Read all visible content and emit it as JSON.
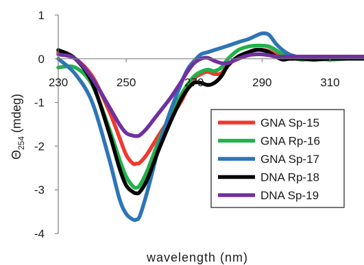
{
  "chart_data": {
    "type": "line",
    "title": "",
    "xlabel": "wavelength (nm)",
    "ylabel": {
      "main": "Θ",
      "sub": "254",
      "tail": " (mdeg)"
    },
    "xlim": [
      230,
      320
    ],
    "ylim": [
      -4,
      1
    ],
    "x_ticks": [
      230,
      250,
      270,
      290,
      310
    ],
    "y_ticks": [
      1,
      0,
      -1,
      -2,
      -3,
      -4
    ],
    "grid": false,
    "legend_position": "lower-right",
    "series": [
      {
        "name": "GNA Sp-15",
        "color": "#ee3a2e",
        "x": [
          230,
          235,
          240,
          245,
          248,
          250,
          252,
          253,
          254,
          256,
          258,
          260,
          263,
          266,
          268,
          270,
          272,
          274,
          276,
          278,
          280,
          283,
          286,
          288,
          290,
          292,
          294,
          296,
          298,
          300,
          302,
          305,
          310,
          315,
          320
        ],
        "y": [
          0.15,
          0.0,
          -0.4,
          -1.2,
          -1.8,
          -2.2,
          -2.4,
          -2.4,
          -2.38,
          -2.2,
          -1.95,
          -1.7,
          -1.35,
          -1.0,
          -0.7,
          -0.45,
          -0.35,
          -0.3,
          -0.35,
          -0.33,
          -0.15,
          0.05,
          0.15,
          0.2,
          0.2,
          0.18,
          0.1,
          0.05,
          0.0,
          0.0,
          -0.02,
          0.0,
          0.0,
          0.02,
          0.03
        ]
      },
      {
        "name": "GNA Rp-16",
        "color": "#22b14c",
        "x": [
          230,
          235,
          240,
          245,
          248,
          250,
          252,
          253,
          254,
          256,
          258,
          260,
          263,
          266,
          268,
          270,
          272,
          274,
          276,
          278,
          280,
          283,
          286,
          288,
          290,
          292,
          294,
          296,
          298,
          300,
          302,
          305,
          310,
          315,
          320
        ],
        "y": [
          -0.2,
          -0.2,
          -0.6,
          -1.6,
          -2.3,
          -2.7,
          -2.92,
          -2.95,
          -2.9,
          -2.6,
          -2.2,
          -1.8,
          -1.3,
          -0.85,
          -0.6,
          -0.4,
          -0.3,
          -0.25,
          -0.28,
          -0.2,
          0.0,
          0.2,
          0.28,
          0.3,
          0.3,
          0.28,
          0.2,
          0.1,
          0.05,
          0.0,
          -0.02,
          0.0,
          -0.02,
          0.0,
          0.0
        ]
      },
      {
        "name": "GNA Sp-17",
        "color": "#2e75b6",
        "x": [
          230,
          235,
          240,
          245,
          248,
          250,
          252,
          253,
          254,
          256,
          258,
          260,
          263,
          266,
          268,
          270,
          272,
          274,
          276,
          278,
          280,
          283,
          286,
          288,
          290,
          292,
          294,
          296,
          298,
          300,
          302,
          305,
          310,
          315,
          320
        ],
        "y": [
          0.0,
          -0.35,
          -1.0,
          -2.3,
          -3.2,
          -3.55,
          -3.68,
          -3.68,
          -3.6,
          -3.1,
          -2.5,
          -1.9,
          -1.2,
          -0.6,
          -0.25,
          -0.05,
          0.1,
          0.15,
          0.2,
          0.25,
          0.3,
          0.38,
          0.45,
          0.52,
          0.58,
          0.55,
          0.35,
          0.2,
          0.1,
          0.05,
          0.0,
          0.0,
          0.0,
          0.02,
          0.0
        ]
      },
      {
        "name": "DNA Rp-18",
        "color": "#000000",
        "x": [
          230,
          235,
          240,
          245,
          248,
          250,
          252,
          253,
          254,
          256,
          258,
          260,
          263,
          266,
          268,
          270,
          272,
          274,
          276,
          278,
          280,
          283,
          286,
          288,
          290,
          292,
          294,
          296,
          298,
          300,
          302,
          305,
          310,
          315,
          320
        ],
        "y": [
          0.2,
          0.0,
          -0.55,
          -1.7,
          -2.5,
          -2.9,
          -3.05,
          -3.08,
          -3.05,
          -2.8,
          -2.4,
          -2.0,
          -1.45,
          -0.95,
          -0.7,
          -0.55,
          -0.55,
          -0.6,
          -0.55,
          -0.4,
          -0.15,
          0.05,
          0.15,
          0.2,
          0.2,
          0.15,
          0.05,
          -0.02,
          0.0,
          0.0,
          0.0,
          -0.02,
          0.0,
          0.0,
          0.0
        ]
      },
      {
        "name": "DNA Sp-19",
        "color": "#7030a0",
        "x": [
          230,
          235,
          240,
          245,
          248,
          250,
          252,
          253,
          254,
          256,
          258,
          260,
          263,
          266,
          268,
          270,
          272,
          274,
          276,
          278,
          280,
          283,
          286,
          288,
          290,
          292,
          294,
          296,
          298,
          300,
          302,
          305,
          310,
          315,
          320
        ],
        "y": [
          0.1,
          0.0,
          -0.45,
          -1.1,
          -1.5,
          -1.7,
          -1.76,
          -1.77,
          -1.75,
          -1.6,
          -1.4,
          -1.2,
          -0.9,
          -0.55,
          -0.3,
          -0.1,
          0.0,
          0.02,
          -0.05,
          -0.1,
          -0.1,
          0.0,
          0.08,
          0.1,
          0.1,
          0.08,
          0.05,
          0.05,
          0.05,
          0.05,
          0.05,
          0.05,
          0.05,
          0.05,
          0.05
        ]
      }
    ]
  }
}
